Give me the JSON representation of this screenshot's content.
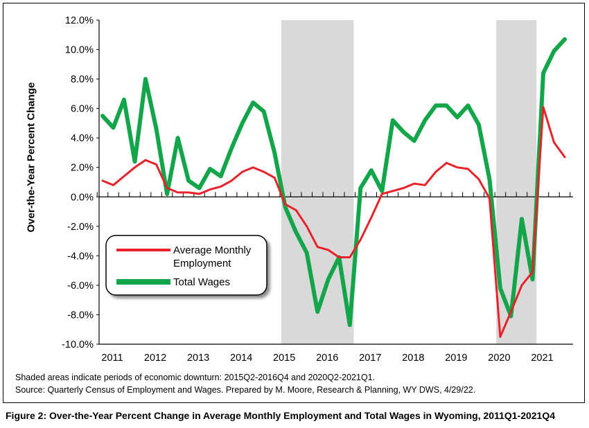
{
  "chart_data": {
    "type": "line",
    "title": "Figure 2: Over-the-Year Percent Change in Average Monthly Employment and Total Wages in Wyoming, 2011Q1-2021Q4",
    "xlabel": "",
    "ylabel": "Over-the-Year Percent Change",
    "ylim": [
      -10,
      12
    ],
    "yticks": [
      "12.0%",
      "10.0%",
      "8.0%",
      "6.0%",
      "4.0%",
      "2.0%",
      "0.0%",
      "-2.0%",
      "-4.0%",
      "-6.0%",
      "-8.0%",
      "-10.0%"
    ],
    "xticks": [
      "2011",
      "2012",
      "2013",
      "2014",
      "2015",
      "2016",
      "2017",
      "2018",
      "2019",
      "2020",
      "2021"
    ],
    "shaded_periods": [
      "2015Q2-2016Q4",
      "2020Q2-2021Q1"
    ],
    "grid": false,
    "legend_position": "lower-left",
    "series": [
      {
        "name": "Average Monthly Employment",
        "color": "#e8212a",
        "values": [
          1.1,
          0.8,
          1.4,
          2.0,
          2.5,
          2.2,
          0.6,
          0.3,
          0.3,
          0.2,
          0.5,
          0.7,
          1.1,
          1.7,
          2.0,
          1.7,
          1.3,
          -0.5,
          -0.9,
          -2.0,
          -3.4,
          -3.6,
          -4.1,
          -4.1,
          -2.9,
          -1.4,
          0.2,
          0.4,
          0.6,
          0.9,
          0.8,
          1.7,
          2.3,
          2.0,
          1.9,
          1.2,
          -0.1,
          -9.5,
          -7.8,
          -6.0,
          -5.1,
          6.1,
          3.7,
          2.7
        ]
      },
      {
        "name": "Total Wages",
        "color": "#12a54a",
        "values": [
          5.5,
          4.7,
          6.6,
          2.4,
          8.0,
          4.6,
          0.2,
          4.0,
          1.1,
          0.6,
          1.9,
          1.4,
          3.3,
          5.0,
          6.4,
          5.8,
          3.0,
          -0.7,
          -2.4,
          -3.8,
          -7.8,
          -5.6,
          -4.1,
          -8.7,
          0.6,
          1.8,
          0.4,
          5.2,
          4.4,
          3.8,
          5.2,
          6.2,
          6.2,
          5.4,
          6.2,
          4.9,
          1.2,
          -6.2,
          -8.1,
          -1.5,
          -5.6,
          8.4,
          9.9,
          10.7
        ]
      }
    ]
  },
  "notes": {
    "line1": "Shaded areas indicate periods of economic downturn: 2015Q2-2016Q4 and 2020Q2-2021Q1.",
    "line2": "Source: Quarterly Census of Employment and Wages. Prepared by M. Moore, Research & Planning, WY DWS, 4/29/22."
  },
  "legend": {
    "employment_label_line1": "Average Monthly",
    "employment_label_line2": "Employment",
    "wages_label": "Total Wages"
  },
  "colors": {
    "shade": "#d9d9d9",
    "employment": "#e8212a",
    "wages": "#12a54a"
  }
}
